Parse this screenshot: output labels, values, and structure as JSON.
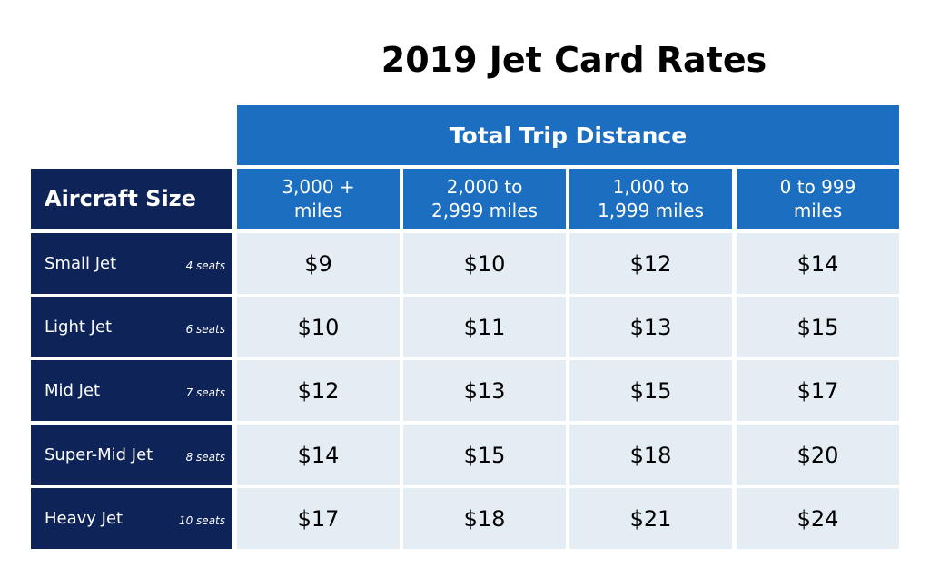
{
  "title": "2019 Jet Card Rates",
  "table": {
    "group_header": "Total Trip Distance",
    "row_header": "Aircraft Size",
    "columns": [
      [
        "3,000 +",
        "miles"
      ],
      [
        "2,000 to",
        "2,999 miles"
      ],
      [
        "1,000 to",
        "1,999 miles"
      ],
      [
        "0 to 999",
        "miles"
      ]
    ],
    "rows": [
      {
        "name": "Small Jet",
        "seats": "4 seats",
        "values": [
          "$9",
          "$10",
          "$12",
          "$14"
        ]
      },
      {
        "name": "Light Jet",
        "seats": "6 seats",
        "values": [
          "$10",
          "$11",
          "$13",
          "$15"
        ]
      },
      {
        "name": "Mid Jet",
        "seats": "7 seats",
        "values": [
          "$12",
          "$13",
          "$15",
          "$17"
        ]
      },
      {
        "name": "Super-Mid Jet",
        "seats": "8 seats",
        "values": [
          "$14",
          "$15",
          "$18",
          "$20"
        ]
      },
      {
        "name": "Heavy Jet",
        "seats": "10 seats",
        "values": [
          "$17",
          "$18",
          "$21",
          "$24"
        ]
      }
    ]
  }
}
